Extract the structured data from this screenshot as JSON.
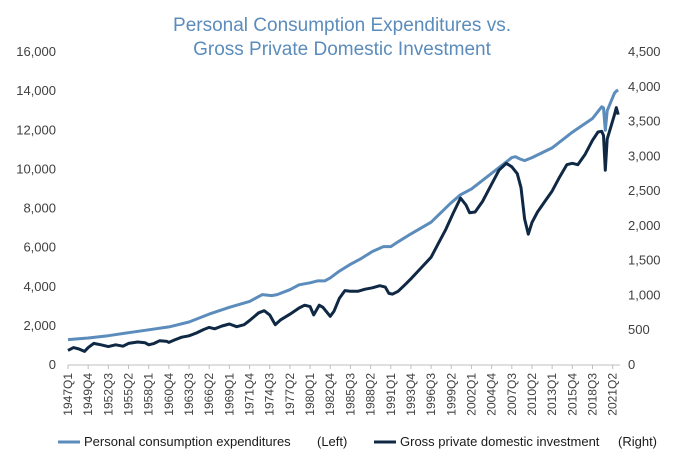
{
  "chart_data": {
    "type": "line",
    "title": [
      "Personal Consumption Expenditures vs.",
      "Gross Private Domestic Investment"
    ],
    "x": [
      "1947Q1",
      "1949Q4",
      "1952Q3",
      "1955Q2",
      "1958Q1",
      "1960Q4",
      "1963Q3",
      "1966Q2",
      "1969Q1",
      "1971Q4",
      "1974Q3",
      "1977Q2",
      "1980Q1",
      "1982Q4",
      "1985Q3",
      "1988Q2",
      "1991Q1",
      "1993Q4",
      "1996Q3",
      "1999Q2",
      "2002Q1",
      "2004Q4",
      "2007Q3",
      "2010Q2",
      "2013Q1",
      "2015Q4",
      "2018Q3",
      "2021Q2"
    ],
    "y_left": {
      "min": 0,
      "max": 16000,
      "ticks": [
        "0",
        "2,000",
        "4,000",
        "6,000",
        "8,000",
        "10,000",
        "12,000",
        "14,000",
        "16,000"
      ]
    },
    "y_right": {
      "min": 0,
      "max": 4500,
      "ticks": [
        "0",
        "500",
        "1,000",
        "1,500",
        "2,000",
        "2,500",
        "3,000",
        "3,500",
        "4,000",
        "4,500"
      ]
    },
    "grid": false,
    "legend_position": "bottom",
    "series": [
      {
        "name": "Personal consumption expenditures",
        "axis_note": "(Left)",
        "axis": "left",
        "color": "#5b8cbb",
        "points": [
          [
            1947.0,
            1300
          ],
          [
            1949.75,
            1380
          ],
          [
            1952.5,
            1500
          ],
          [
            1955.25,
            1650
          ],
          [
            1958.0,
            1800
          ],
          [
            1960.75,
            1950
          ],
          [
            1963.5,
            2200
          ],
          [
            1966.25,
            2600
          ],
          [
            1969.0,
            2950
          ],
          [
            1971.75,
            3250
          ],
          [
            1973.5,
            3600
          ],
          [
            1974.75,
            3550
          ],
          [
            1975.5,
            3600
          ],
          [
            1977.25,
            3850
          ],
          [
            1978.5,
            4100
          ],
          [
            1980.0,
            4200
          ],
          [
            1981.0,
            4300
          ],
          [
            1982.0,
            4300
          ],
          [
            1982.75,
            4450
          ],
          [
            1984.0,
            4800
          ],
          [
            1985.5,
            5150
          ],
          [
            1987.0,
            5450
          ],
          [
            1988.5,
            5800
          ],
          [
            1990.0,
            6050
          ],
          [
            1991.0,
            6050
          ],
          [
            1992.0,
            6300
          ],
          [
            1993.75,
            6700
          ],
          [
            1996.5,
            7300
          ],
          [
            1999.25,
            8300
          ],
          [
            2000.5,
            8700
          ],
          [
            2002.0,
            9000
          ],
          [
            2004.75,
            9800
          ],
          [
            2007.5,
            10600
          ],
          [
            2008.0,
            10650
          ],
          [
            2008.5,
            10550
          ],
          [
            2009.25,
            10450
          ],
          [
            2010.25,
            10600
          ],
          [
            2013.0,
            11100
          ],
          [
            2015.75,
            11900
          ],
          [
            2018.5,
            12600
          ],
          [
            2019.75,
            13200
          ],
          [
            2020.0,
            13150
          ],
          [
            2020.25,
            12000
          ],
          [
            2020.5,
            13000
          ],
          [
            2021.5,
            13900
          ],
          [
            2021.75,
            14000
          ],
          [
            2022.0,
            14050
          ]
        ]
      },
      {
        "name": "Gross private domestic investment",
        "axis_note": "(Right)",
        "axis": "right",
        "color": "#0f2844",
        "points": [
          [
            1947.0,
            210
          ],
          [
            1947.75,
            250
          ],
          [
            1948.5,
            230
          ],
          [
            1949.25,
            195
          ],
          [
            1949.75,
            250
          ],
          [
            1950.5,
            310
          ],
          [
            1951.5,
            290
          ],
          [
            1952.5,
            265
          ],
          [
            1953.5,
            290
          ],
          [
            1954.5,
            270
          ],
          [
            1955.25,
            310
          ],
          [
            1956.5,
            330
          ],
          [
            1957.5,
            320
          ],
          [
            1958.0,
            290
          ],
          [
            1958.75,
            310
          ],
          [
            1959.5,
            350
          ],
          [
            1960.5,
            340
          ],
          [
            1960.75,
            325
          ],
          [
            1961.5,
            360
          ],
          [
            1962.5,
            400
          ],
          [
            1963.5,
            420
          ],
          [
            1964.5,
            460
          ],
          [
            1965.5,
            510
          ],
          [
            1966.25,
            540
          ],
          [
            1967.0,
            520
          ],
          [
            1968.0,
            560
          ],
          [
            1969.0,
            590
          ],
          [
            1970.0,
            550
          ],
          [
            1971.0,
            580
          ],
          [
            1971.75,
            640
          ],
          [
            1973.0,
            750
          ],
          [
            1973.75,
            780
          ],
          [
            1974.5,
            720
          ],
          [
            1975.25,
            580
          ],
          [
            1976.0,
            650
          ],
          [
            1977.25,
            730
          ],
          [
            1978.5,
            820
          ],
          [
            1979.25,
            860
          ],
          [
            1980.0,
            840
          ],
          [
            1980.5,
            720
          ],
          [
            1981.25,
            860
          ],
          [
            1981.75,
            830
          ],
          [
            1982.75,
            700
          ],
          [
            1983.25,
            770
          ],
          [
            1984.0,
            960
          ],
          [
            1984.75,
            1070
          ],
          [
            1985.5,
            1060
          ],
          [
            1986.5,
            1060
          ],
          [
            1987.5,
            1090
          ],
          [
            1988.5,
            1110
          ],
          [
            1989.5,
            1140
          ],
          [
            1990.25,
            1120
          ],
          [
            1990.75,
            1030
          ],
          [
            1991.25,
            1020
          ],
          [
            1992.0,
            1060
          ],
          [
            1993.0,
            1160
          ],
          [
            1993.75,
            1240
          ],
          [
            1995.0,
            1380
          ],
          [
            1996.5,
            1550
          ],
          [
            1997.5,
            1750
          ],
          [
            1998.5,
            1950
          ],
          [
            1999.5,
            2180
          ],
          [
            2000.5,
            2400
          ],
          [
            2001.25,
            2300
          ],
          [
            2001.75,
            2190
          ],
          [
            2002.5,
            2200
          ],
          [
            2003.5,
            2350
          ],
          [
            2004.75,
            2600
          ],
          [
            2005.75,
            2800
          ],
          [
            2006.75,
            2900
          ],
          [
            2007.5,
            2850
          ],
          [
            2008.25,
            2750
          ],
          [
            2008.75,
            2550
          ],
          [
            2009.25,
            2100
          ],
          [
            2009.75,
            1880
          ],
          [
            2010.25,
            2050
          ],
          [
            2011.0,
            2200
          ],
          [
            2012.0,
            2350
          ],
          [
            2013.0,
            2500
          ],
          [
            2014.0,
            2700
          ],
          [
            2015.0,
            2880
          ],
          [
            2015.75,
            2900
          ],
          [
            2016.5,
            2880
          ],
          [
            2017.5,
            3030
          ],
          [
            2018.5,
            3230
          ],
          [
            2019.25,
            3350
          ],
          [
            2019.75,
            3360
          ],
          [
            2020.0,
            3300
          ],
          [
            2020.25,
            2800
          ],
          [
            2020.5,
            3250
          ],
          [
            2021.0,
            3420
          ],
          [
            2021.5,
            3600
          ],
          [
            2021.75,
            3700
          ],
          [
            2022.0,
            3600
          ]
        ]
      }
    ]
  }
}
